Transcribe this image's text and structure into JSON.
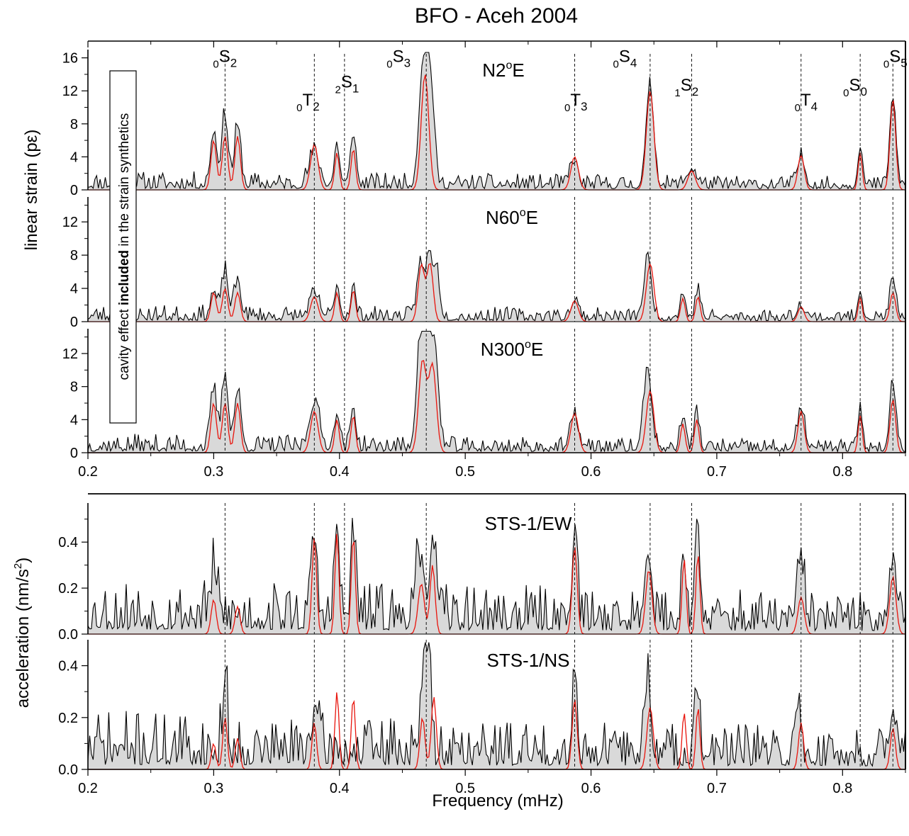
{
  "figure": {
    "title": "BFO - Aceh 2004",
    "xlabel": "Frequency (mHz)",
    "strain_ylabel": "linear strain (pε)",
    "accel_ylabel_main": "acceleration (nm/s",
    "accel_ylabel_sup": "2",
    "accel_ylabel_end": ")",
    "annotation_pre": "cavity effect ",
    "annotation_bold": "included",
    "annotation_post": " in the strain synthetics",
    "colors": {
      "observed": "#000000",
      "fill": "#d9d9d9",
      "synthetic": "#e8140c"
    }
  },
  "chart_data": [
    {
      "type": "area",
      "title": "",
      "panel_label": {
        "main": "N2",
        "sup": "o",
        "tail": "E"
      },
      "xlim": [
        0.2,
        0.85
      ],
      "ylim": [
        0,
        17
      ],
      "yticks": [
        0,
        4,
        8,
        12,
        16
      ],
      "xticks": [
        0.2,
        0.3,
        0.4,
        0.5,
        0.6,
        0.7,
        0.8
      ],
      "xtick_labels": [
        "0.2",
        "0.3",
        "0.4",
        "0.5",
        "0.6",
        "0.7",
        "0.8"
      ],
      "mode_lines": [
        0.309,
        0.38,
        0.404,
        0.469,
        0.587,
        0.647,
        0.68,
        0.767,
        0.814,
        0.84
      ],
      "mode_labels": [
        {
          "pre": "0",
          "main": "S",
          "sub": "2",
          "x": 0.309,
          "y": 15.5
        },
        {
          "pre": "0",
          "main": "T",
          "sub": "2",
          "x": 0.375,
          "y": 10.2
        },
        {
          "pre": "2",
          "main": "S",
          "sub": "1",
          "x": 0.406,
          "y": 12.4
        },
        {
          "pre": "0",
          "main": "S",
          "sub": "3",
          "x": 0.447,
          "y": 15.5
        },
        {
          "pre": "0",
          "main": "T",
          "sub": "3",
          "x": 0.588,
          "y": 10.2
        },
        {
          "pre": "0",
          "main": "S",
          "sub": "4",
          "x": 0.627,
          "y": 15.5
        },
        {
          "pre": "1",
          "main": "S",
          "sub": "2",
          "x": 0.676,
          "y": 12.0
        },
        {
          "pre": "0",
          "main": "T",
          "sub": "4",
          "x": 0.771,
          "y": 10.2
        },
        {
          "pre": "0",
          "main": "S",
          "sub": "0",
          "x": 0.81,
          "y": 12.0
        },
        {
          "pre": "0",
          "main": "S",
          "sub": "5",
          "x": 0.842,
          "y": 15.5
        }
      ],
      "series": [
        {
          "name": "",
          "role": "observed",
          "noise": 1.1,
          "seed": 11,
          "peaks": [
            [
              0.3,
              6.5,
              0.0025
            ],
            [
              0.309,
              8.5,
              0.0025
            ],
            [
              0.319,
              7.0,
              0.0025
            ],
            [
              0.38,
              4.0,
              0.004
            ],
            [
              0.398,
              5.0,
              0.002
            ],
            [
              0.411,
              6.5,
              0.002
            ],
            [
              0.466,
              13.5,
              0.003
            ],
            [
              0.472,
              13.5,
              0.003
            ],
            [
              0.586,
              3.0,
              0.003
            ],
            [
              0.647,
              12.0,
              0.003
            ],
            [
              0.68,
              2.0,
              0.004
            ],
            [
              0.767,
              3.5,
              0.003
            ],
            [
              0.814,
              5.0,
              0.0018
            ],
            [
              0.84,
              10.5,
              0.0025
            ]
          ]
        },
        {
          "name": "",
          "role": "synthetic",
          "noise": 0,
          "seed": 0,
          "peaks": [
            [
              0.3,
              6.0,
              0.0022
            ],
            [
              0.309,
              6.5,
              0.0022
            ],
            [
              0.319,
              6.5,
              0.0022
            ],
            [
              0.38,
              5.5,
              0.003
            ],
            [
              0.398,
              4.5,
              0.0018
            ],
            [
              0.411,
              5.0,
              0.0018
            ],
            [
              0.468,
              14.0,
              0.003
            ],
            [
              0.587,
              4.0,
              0.003
            ],
            [
              0.647,
              12.0,
              0.003
            ],
            [
              0.68,
              2.3,
              0.003
            ],
            [
              0.767,
              4.2,
              0.0025
            ],
            [
              0.814,
              4.5,
              0.0016
            ],
            [
              0.84,
              11.0,
              0.0022
            ]
          ]
        }
      ]
    },
    {
      "type": "area",
      "title": "",
      "panel_label": {
        "main": "N60",
        "sup": "o",
        "tail": "E"
      },
      "xlim": [
        0.2,
        0.85
      ],
      "ylim": [
        0,
        15
      ],
      "yticks": [
        0,
        4,
        8,
        12
      ],
      "xticks": [
        0.2,
        0.3,
        0.4,
        0.5,
        0.6,
        0.7,
        0.8
      ],
      "xtick_labels": [
        "0.2",
        "0.3",
        "0.4",
        "0.5",
        "0.6",
        "0.7",
        "0.8"
      ],
      "mode_lines": [
        0.309,
        0.38,
        0.404,
        0.469,
        0.587,
        0.647,
        0.68,
        0.767,
        0.814,
        0.84
      ],
      "mode_labels": [],
      "series": [
        {
          "name": "",
          "role": "observed",
          "noise": 1.0,
          "seed": 23,
          "peaks": [
            [
              0.3,
              3.0,
              0.0025
            ],
            [
              0.309,
              5.5,
              0.0025
            ],
            [
              0.319,
              4.5,
              0.0025
            ],
            [
              0.38,
              2.5,
              0.004
            ],
            [
              0.398,
              4.0,
              0.002
            ],
            [
              0.411,
              3.5,
              0.002
            ],
            [
              0.464,
              6.5,
              0.0025
            ],
            [
              0.471,
              7.5,
              0.0025
            ],
            [
              0.477,
              6.0,
              0.0025
            ],
            [
              0.587,
              2.0,
              0.003
            ],
            [
              0.645,
              7.0,
              0.003
            ],
            [
              0.673,
              3.0,
              0.002
            ],
            [
              0.685,
              3.5,
              0.002
            ],
            [
              0.767,
              1.5,
              0.003
            ],
            [
              0.814,
              3.5,
              0.0018
            ],
            [
              0.84,
              4.5,
              0.0025
            ]
          ]
        },
        {
          "name": "",
          "role": "synthetic",
          "noise": 0,
          "seed": 0,
          "peaks": [
            [
              0.3,
              3.5,
              0.0022
            ],
            [
              0.309,
              4.0,
              0.0022
            ],
            [
              0.319,
              3.5,
              0.0022
            ],
            [
              0.38,
              3.0,
              0.003
            ],
            [
              0.398,
              3.5,
              0.0018
            ],
            [
              0.411,
              3.8,
              0.0018
            ],
            [
              0.465,
              6.8,
              0.0025
            ],
            [
              0.472,
              7.0,
              0.0025
            ],
            [
              0.587,
              2.5,
              0.003
            ],
            [
              0.647,
              7.0,
              0.003
            ],
            [
              0.673,
              2.8,
              0.0018
            ],
            [
              0.685,
              3.0,
              0.0018
            ],
            [
              0.767,
              1.8,
              0.0025
            ],
            [
              0.814,
              3.0,
              0.0016
            ],
            [
              0.84,
              3.5,
              0.0022
            ]
          ]
        }
      ]
    },
    {
      "type": "area",
      "title": "",
      "panel_label": {
        "main": "N300",
        "sup": "o",
        "tail": "E"
      },
      "xlim": [
        0.2,
        0.85
      ],
      "ylim": [
        0,
        15
      ],
      "yticks": [
        0,
        4,
        8,
        12
      ],
      "xticks": [
        0.2,
        0.3,
        0.4,
        0.5,
        0.6,
        0.7,
        0.8
      ],
      "xtick_labels": [
        "0.2",
        "0.3",
        "0.4",
        "0.5",
        "0.6",
        "0.7",
        "0.8"
      ],
      "mode_lines": [
        0.309,
        0.38,
        0.404,
        0.469,
        0.587,
        0.647,
        0.68,
        0.767,
        0.814,
        0.84
      ],
      "mode_labels": [],
      "series": [
        {
          "name": "",
          "role": "observed",
          "noise": 1.1,
          "seed": 37,
          "peaks": [
            [
              0.3,
              7.0,
              0.0025
            ],
            [
              0.309,
              9.0,
              0.0025
            ],
            [
              0.319,
              7.0,
              0.0025
            ],
            [
              0.38,
              5.5,
              0.004
            ],
            [
              0.398,
              4.5,
              0.002
            ],
            [
              0.411,
              5.0,
              0.002
            ],
            [
              0.464,
              12.0,
              0.003
            ],
            [
              0.47,
              12.0,
              0.003
            ],
            [
              0.476,
              11.0,
              0.003
            ],
            [
              0.587,
              4.0,
              0.003
            ],
            [
              0.645,
              10.0,
              0.003
            ],
            [
              0.673,
              4.0,
              0.002
            ],
            [
              0.684,
              4.5,
              0.002
            ],
            [
              0.767,
              4.5,
              0.003
            ],
            [
              0.814,
              5.0,
              0.0018
            ],
            [
              0.84,
              8.0,
              0.0025
            ]
          ]
        },
        {
          "name": "",
          "role": "synthetic",
          "noise": 0,
          "seed": 0,
          "peaks": [
            [
              0.3,
              6.0,
              0.0022
            ],
            [
              0.309,
              6.0,
              0.0022
            ],
            [
              0.319,
              6.0,
              0.0022
            ],
            [
              0.38,
              5.0,
              0.003
            ],
            [
              0.398,
              4.0,
              0.0018
            ],
            [
              0.411,
              4.5,
              0.0018
            ],
            [
              0.466,
              11.0,
              0.003
            ],
            [
              0.474,
              10.5,
              0.003
            ],
            [
              0.587,
              4.8,
              0.003
            ],
            [
              0.647,
              7.5,
              0.003
            ],
            [
              0.673,
              3.5,
              0.0018
            ],
            [
              0.684,
              4.0,
              0.0018
            ],
            [
              0.767,
              5.0,
              0.0025
            ],
            [
              0.814,
              4.5,
              0.0016
            ],
            [
              0.84,
              6.5,
              0.0022
            ]
          ]
        }
      ]
    },
    {
      "type": "area",
      "title": "",
      "panel_label": {
        "main": "STS-1/EW",
        "sup": "",
        "tail": ""
      },
      "xlim": [
        0.2,
        0.85
      ],
      "ylim": [
        0,
        0.57
      ],
      "yticks": [
        0.0,
        0.2,
        0.4
      ],
      "ytick_labels": [
        "0.0",
        "0.2",
        "0.4"
      ],
      "xticks": [
        0.2,
        0.3,
        0.4,
        0.5,
        0.6,
        0.7,
        0.8
      ],
      "xtick_labels": [
        "0.2",
        "0.3",
        "0.4",
        "0.5",
        "0.6",
        "0.7",
        "0.8"
      ],
      "mode_lines": [
        0.309,
        0.38,
        0.404,
        0.469,
        0.587,
        0.647,
        0.68,
        0.767,
        0.814,
        0.84
      ],
      "mode_labels": [],
      "series": [
        {
          "name": "",
          "role": "observed",
          "noise": 0.12,
          "seed": 53,
          "peaks": [
            [
              0.3,
              0.18,
              0.003
            ],
            [
              0.38,
              0.38,
              0.002
            ],
            [
              0.398,
              0.42,
              0.0018
            ],
            [
              0.411,
              0.4,
              0.0018
            ],
            [
              0.462,
              0.25,
              0.003
            ],
            [
              0.474,
              0.38,
              0.0025
            ],
            [
              0.587,
              0.4,
              0.002
            ],
            [
              0.645,
              0.33,
              0.0025
            ],
            [
              0.674,
              0.3,
              0.0018
            ],
            [
              0.684,
              0.42,
              0.0018
            ],
            [
              0.767,
              0.28,
              0.0025
            ],
            [
              0.84,
              0.28,
              0.003
            ]
          ]
        },
        {
          "name": "",
          "role": "synthetic",
          "noise": 0,
          "seed": 0,
          "peaks": [
            [
              0.3,
              0.15,
              0.002
            ],
            [
              0.319,
              0.12,
              0.002
            ],
            [
              0.38,
              0.42,
              0.0018
            ],
            [
              0.398,
              0.44,
              0.0016
            ],
            [
              0.411,
              0.43,
              0.0016
            ],
            [
              0.465,
              0.22,
              0.0025
            ],
            [
              0.474,
              0.3,
              0.002
            ],
            [
              0.587,
              0.38,
              0.002
            ],
            [
              0.646,
              0.28,
              0.0025
            ],
            [
              0.674,
              0.33,
              0.0016
            ],
            [
              0.685,
              0.35,
              0.0016
            ],
            [
              0.767,
              0.16,
              0.0025
            ],
            [
              0.84,
              0.25,
              0.0025
            ]
          ]
        }
      ]
    },
    {
      "type": "area",
      "title": "",
      "panel_label": {
        "main": "STS-1/NS",
        "sup": "",
        "tail": ""
      },
      "xlim": [
        0.2,
        0.85
      ],
      "ylim": [
        0,
        0.5
      ],
      "yticks": [
        0.0,
        0.2,
        0.4
      ],
      "ytick_labels": [
        "0.0",
        "0.2",
        "0.4"
      ],
      "xticks": [
        0.2,
        0.3,
        0.4,
        0.5,
        0.6,
        0.7,
        0.8
      ],
      "xtick_labels": [
        "0.2",
        "0.3",
        "0.4",
        "0.5",
        "0.6",
        "0.7",
        "0.8"
      ],
      "mode_lines": [
        0.309,
        0.38,
        0.404,
        0.469,
        0.587,
        0.647,
        0.68,
        0.767,
        0.814,
        0.84
      ],
      "mode_labels": [],
      "series": [
        {
          "name": "",
          "role": "observed",
          "noise": 0.11,
          "seed": 71,
          "peaks": [
            [
              0.309,
              0.26,
              0.002
            ],
            [
              0.38,
              0.15,
              0.003
            ],
            [
              0.467,
              0.4,
              0.0018
            ],
            [
              0.471,
              0.45,
              0.0015
            ],
            [
              0.587,
              0.3,
              0.002
            ],
            [
              0.645,
              0.3,
              0.0025
            ],
            [
              0.684,
              0.27,
              0.002
            ],
            [
              0.765,
              0.2,
              0.002
            ],
            [
              0.84,
              0.2,
              0.0025
            ]
          ]
        },
        {
          "name": "",
          "role": "synthetic",
          "noise": 0,
          "seed": 0,
          "peaks": [
            [
              0.3,
              0.1,
              0.0018
            ],
            [
              0.309,
              0.2,
              0.0018
            ],
            [
              0.319,
              0.12,
              0.0018
            ],
            [
              0.38,
              0.18,
              0.0018
            ],
            [
              0.398,
              0.3,
              0.0016
            ],
            [
              0.411,
              0.28,
              0.0016
            ],
            [
              0.466,
              0.2,
              0.002
            ],
            [
              0.475,
              0.28,
              0.002
            ],
            [
              0.587,
              0.27,
              0.002
            ],
            [
              0.647,
              0.24,
              0.0025
            ],
            [
              0.674,
              0.22,
              0.0016
            ],
            [
              0.685,
              0.24,
              0.0016
            ],
            [
              0.767,
              0.18,
              0.002
            ],
            [
              0.84,
              0.16,
              0.002
            ]
          ]
        }
      ]
    }
  ]
}
